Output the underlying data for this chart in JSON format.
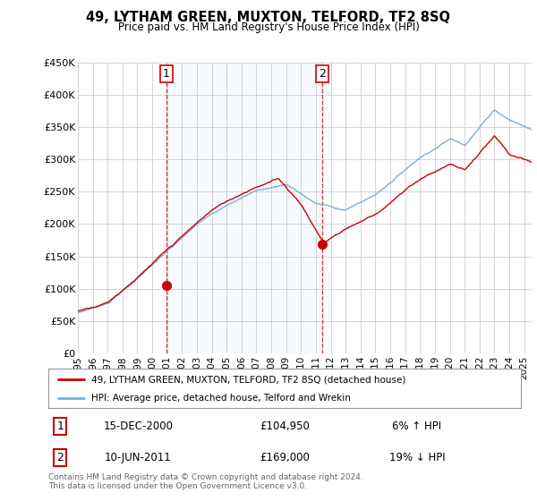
{
  "title": "49, LYTHAM GREEN, MUXTON, TELFORD, TF2 8SQ",
  "subtitle": "Price paid vs. HM Land Registry's House Price Index (HPI)",
  "legend_line1": "49, LYTHAM GREEN, MUXTON, TELFORD, TF2 8SQ (detached house)",
  "legend_line2": "HPI: Average price, detached house, Telford and Wrekin",
  "annotation1_label": "1",
  "annotation1_date": "15-DEC-2000",
  "annotation1_price": "£104,950",
  "annotation1_hpi": "6% ↑ HPI",
  "annotation2_label": "2",
  "annotation2_date": "10-JUN-2011",
  "annotation2_price": "£169,000",
  "annotation2_hpi": "19% ↓ HPI",
  "footer": "Contains HM Land Registry data © Crown copyright and database right 2024.\nThis data is licensed under the Open Government Licence v3.0.",
  "sale1_x": 2000.958,
  "sale1_y": 104950,
  "sale2_x": 2011.44,
  "sale2_y": 169000,
  "price_color": "#cc0000",
  "hpi_color": "#7ab0d4",
  "vline_color": "#cc0000",
  "shade_color": "#ddeeff",
  "ylim": [
    0,
    450000
  ],
  "xlim_start": 1995.0,
  "xlim_end": 2025.5,
  "background_color": "#ffffff",
  "grid_color": "#cccccc",
  "yticks": [
    0,
    50000,
    100000,
    150000,
    200000,
    250000,
    300000,
    350000,
    400000,
    450000
  ],
  "ytick_labels": [
    "£0",
    "£50K",
    "£100K",
    "£150K",
    "£200K",
    "£250K",
    "£300K",
    "£350K",
    "£400K",
    "£450K"
  ]
}
